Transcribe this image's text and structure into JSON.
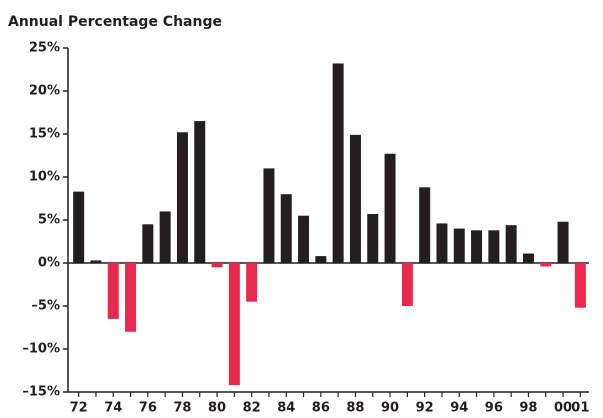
{
  "chart_data": {
    "type": "bar",
    "title": "Annual Percentage Change",
    "categories": [
      "72",
      null,
      "74",
      null,
      "76",
      null,
      "78",
      null,
      "80",
      null,
      "82",
      null,
      "84",
      null,
      "86",
      null,
      "88",
      null,
      "90",
      null,
      "92",
      null,
      "94",
      null,
      "96",
      null,
      "98",
      null,
      "00",
      "01"
    ],
    "values": [
      8.3,
      0.3,
      -6.5,
      -8,
      4.5,
      6,
      15.2,
      16.5,
      -0.5,
      -14.2,
      -4.5,
      11,
      8,
      5.5,
      0.8,
      23.2,
      14.9,
      5.7,
      12.7,
      -5,
      8.8,
      4.6,
      4,
      3.8,
      3.8,
      4.4,
      1.1,
      -0.4,
      4.8,
      -5.2
    ],
    "color": "#231f20",
    "negative_color": "#e8294f",
    "ylim": [
      -15,
      25
    ],
    "yticks": [
      {
        "value": -15,
        "label": "–15%"
      },
      {
        "value": -10,
        "label": "–10%"
      },
      {
        "value": -5,
        "label": "–5%"
      },
      {
        "value": 0,
        "label": "0%"
      },
      {
        "value": 5,
        "label": "5%"
      },
      {
        "value": 10,
        "label": "10%"
      },
      {
        "value": 15,
        "label": "15%"
      },
      {
        "value": 20,
        "label": "20%"
      },
      {
        "value": 25,
        "label": "25%"
      }
    ],
    "grid": false
  }
}
